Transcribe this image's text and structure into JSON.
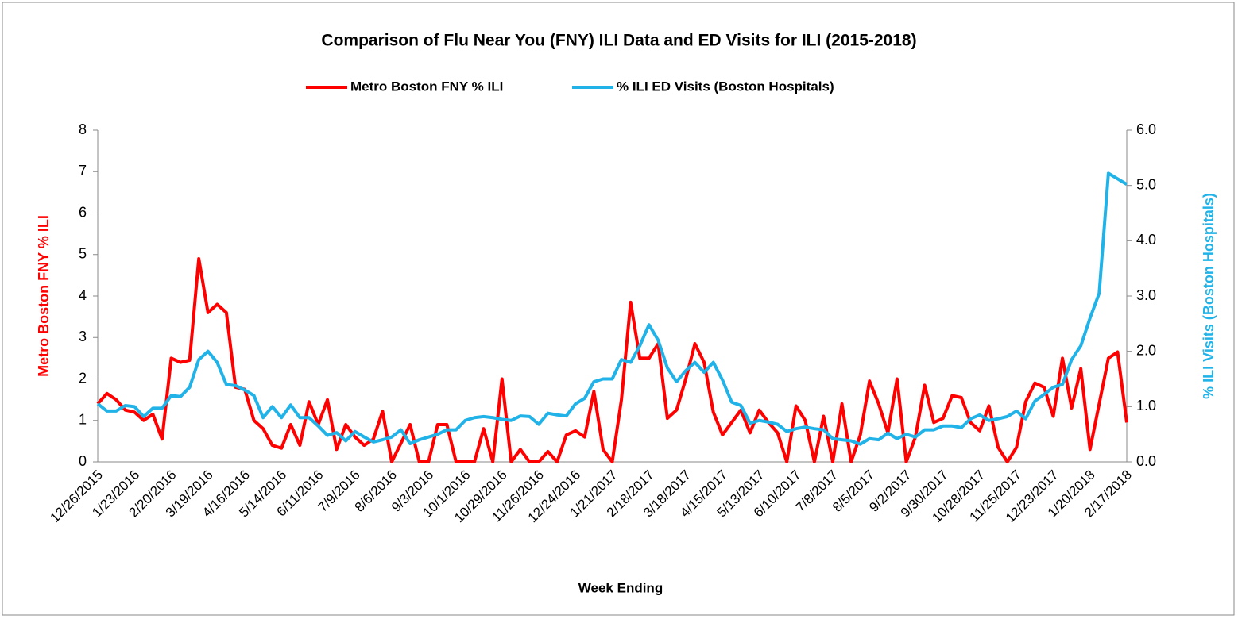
{
  "chart_data": {
    "type": "line",
    "title": "Comparison of Flu Near You (FNY) ILI Data and ED Visits for ILI (2015-2018)",
    "x_label": "Week Ending",
    "y_label": "Metro Boston FNY % ILI",
    "y2_label": "% ILI Visits (Boston Hospitals)",
    "legend": "top",
    "categories": [
      "12/26/2015",
      null,
      null,
      null,
      "1/23/2016",
      null,
      null,
      null,
      "2/20/2016",
      null,
      null,
      null,
      "3/19/2016",
      null,
      null,
      null,
      "4/16/2016",
      null,
      null,
      null,
      "5/14/2016",
      null,
      null,
      null,
      "6/11/2016",
      null,
      null,
      null,
      "7/9/2016",
      null,
      null,
      null,
      "8/6/2016",
      null,
      null,
      null,
      "9/3/2016",
      null,
      null,
      null,
      "10/1/2016",
      null,
      null,
      null,
      "10/29/2016",
      null,
      null,
      null,
      "11/26/2016",
      null,
      null,
      null,
      "12/24/2016",
      null,
      null,
      null,
      "1/21/2017",
      null,
      null,
      null,
      "2/18/2017",
      null,
      null,
      null,
      "3/18/2017",
      null,
      null,
      null,
      "4/15/2017",
      null,
      null,
      null,
      "5/13/2017",
      null,
      null,
      null,
      "6/10/2017",
      null,
      null,
      null,
      "7/8/2017",
      null,
      null,
      null,
      "8/5/2017",
      null,
      null,
      null,
      "9/2/2017",
      null,
      null,
      null,
      "9/30/2017",
      null,
      null,
      null,
      "10/28/2017",
      null,
      null,
      null,
      "11/25/2017",
      null,
      null,
      null,
      "12/23/2017",
      null,
      null,
      null,
      "1/20/2018",
      null,
      null,
      null,
      "2/17/2018"
    ],
    "ylim": [
      0,
      8
    ],
    "yticks": [
      0,
      1,
      2,
      3,
      4,
      5,
      6,
      7,
      8
    ],
    "y2lim": [
      0,
      6
    ],
    "y2ticks": [
      {
        "value": 0,
        "label": "0.0"
      },
      {
        "value": 1,
        "label": "1.0"
      },
      {
        "value": 2,
        "label": "2.0"
      },
      {
        "value": 3,
        "label": "3.0"
      },
      {
        "value": 4,
        "label": "4.0"
      },
      {
        "value": 5,
        "label": "5.0"
      },
      {
        "value": 6,
        "label": "6.0"
      }
    ],
    "grid": false,
    "series": [
      {
        "name": "Metro Boston FNY % ILI",
        "color": "#ff0000",
        "values": [
          1.4,
          1.65,
          1.5,
          1.25,
          1.2,
          1.0,
          1.15,
          0.55,
          2.5,
          2.4,
          2.45,
          4.9,
          3.6,
          3.8,
          3.6,
          1.8,
          1.75,
          1.0,
          0.8,
          0.4,
          0.33,
          0.9,
          0.4,
          1.45,
          0.9,
          1.5,
          0.3,
          0.9,
          0.6,
          0.4,
          0.55,
          1.22,
          0,
          0.45,
          0.9,
          0,
          0,
          0.9,
          0.9,
          0,
          0,
          0,
          0.8,
          0,
          2.0,
          0,
          0.3,
          0,
          0,
          0.25,
          0,
          0.65,
          0.75,
          0.6,
          1.7,
          0.3,
          0,
          1.5,
          3.85,
          2.5,
          2.5,
          2.85,
          1.05,
          1.25,
          2.0,
          2.85,
          2.4,
          1.2,
          0.65,
          0.95,
          1.25,
          0.7,
          1.25,
          0.95,
          0.7,
          0,
          1.35,
          1.0,
          0,
          1.1,
          0,
          1.4,
          0,
          0.65,
          1.95,
          1.4,
          0.7,
          2.0,
          0,
          0.6,
          1.85,
          0.95,
          1.05,
          1.6,
          1.55,
          0.95,
          0.75,
          1.35,
          0.35,
          0,
          0.35,
          1.45,
          1.9,
          1.8,
          1.1,
          2.5,
          1.3,
          2.25,
          0.3,
          1.4,
          2.5,
          2.65,
          0.95
        ]
      },
      {
        "name": "% ILI ED Visits (Boston Hospitals)",
        "color": "#21b3e8",
        "axis": "y2",
        "values": [
          1.05,
          0.92,
          0.92,
          1.02,
          1.0,
          0.82,
          0.97,
          0.97,
          1.2,
          1.18,
          1.35,
          1.85,
          2.0,
          1.8,
          1.4,
          1.38,
          1.3,
          1.2,
          0.8,
          1.0,
          0.8,
          1.03,
          0.8,
          0.8,
          0.65,
          0.48,
          0.53,
          0.38,
          0.55,
          0.45,
          0.36,
          0.4,
          0.45,
          0.58,
          0.33,
          0.4,
          0.45,
          0.5,
          0.58,
          0.58,
          0.75,
          0.8,
          0.82,
          0.8,
          0.77,
          0.75,
          0.83,
          0.82,
          0.68,
          0.88,
          0.85,
          0.83,
          1.05,
          1.15,
          1.45,
          1.5,
          1.5,
          1.85,
          1.8,
          2.1,
          2.48,
          2.2,
          1.7,
          1.45,
          1.65,
          1.8,
          1.62,
          1.8,
          1.48,
          1.08,
          1.02,
          0.7,
          0.75,
          0.72,
          0.68,
          0.55,
          0.6,
          0.63,
          0.6,
          0.58,
          0.42,
          0.4,
          0.38,
          0.32,
          0.42,
          0.4,
          0.52,
          0.42,
          0.5,
          0.45,
          0.58,
          0.58,
          0.65,
          0.65,
          0.62,
          0.78,
          0.85,
          0.75,
          0.78,
          0.82,
          0.92,
          0.78,
          1.1,
          1.22,
          1.35,
          1.4,
          1.85,
          2.1,
          2.6,
          3.05,
          5.22,
          5.12,
          5.02
        ]
      }
    ]
  }
}
